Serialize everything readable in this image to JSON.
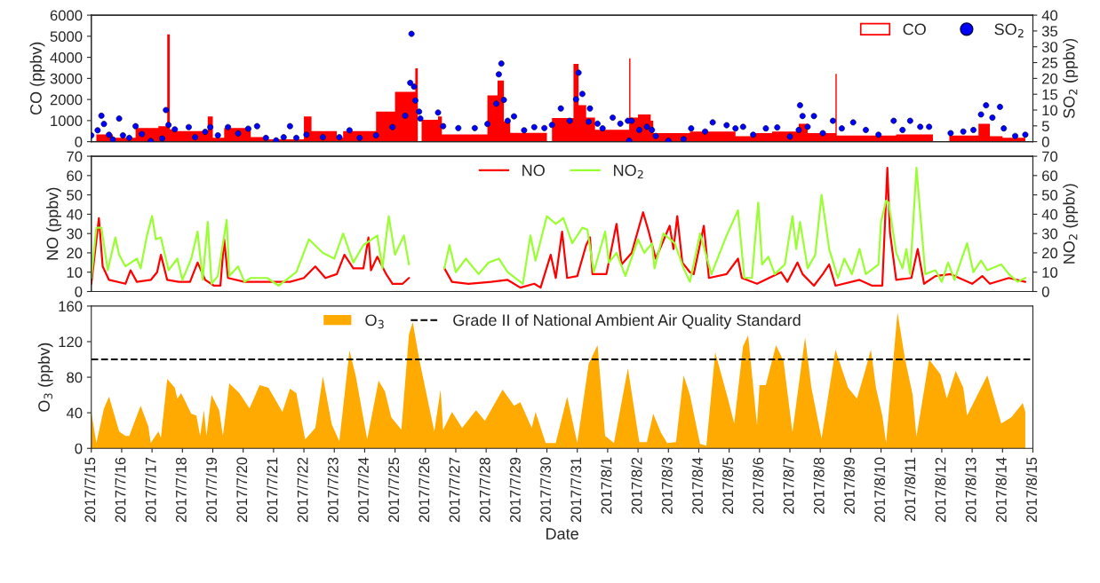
{
  "chart_data": [
    {
      "type": "bar",
      "ylabel": "CO (ppbv)",
      "y2label": "SO$_{2}$ (ppbv)",
      "xlim": [
        "2017-07-15",
        "2017-08-15"
      ],
      "ylim": [
        0,
        6000
      ],
      "yticks": [
        0,
        1000,
        2000,
        3000,
        4000,
        5000,
        6000
      ],
      "y2lim": [
        0,
        40
      ],
      "y2ticks": [
        0,
        5,
        10,
        15,
        20,
        25,
        30,
        35,
        40
      ],
      "tick_labels": "y",
      "legend": "top right",
      "series": [
        {
          "name": "CO",
          "type": "area",
          "color": "#ff0000",
          "x": [
            "2017-07-15T04:00",
            "2017-07-15T17:00",
            "2017-07-15T17:00",
            "2017-07-16T11:00",
            "2017-07-16T11:00",
            "2017-07-17T05:00",
            "2017-07-17T05:00",
            "2017-07-17T12:00",
            "2017-07-17T12:00",
            "2017-07-17T14:00",
            "2017-07-17T14:00",
            "2017-07-17T17:00",
            "2017-07-17T17:00",
            "2017-07-18T20:00",
            "2017-07-18T20:00",
            "2017-07-19T00:00",
            "2017-07-19T00:00",
            "2017-07-19T09:00",
            "2017-07-19T09:00",
            "2017-07-20T06:00",
            "2017-07-20T06:00",
            "2017-07-20T18:00",
            "2017-07-20T18:00",
            "2017-07-22T00:00",
            "2017-07-22T00:00",
            "2017-07-22T06:00",
            "2017-07-22T06:00",
            "2017-07-23T02:00",
            "2017-07-23T02:00",
            "2017-07-23T07:00",
            "2017-07-23T07:00",
            "2017-07-24T09:00",
            "2017-07-24T09:00",
            "2017-07-25T00:00",
            "2017-07-25T00:00",
            "2017-07-25T16:00",
            "2017-07-25T16:00",
            "2017-07-25T18:00",
            "2017-07-25T19:00",
            "2017-07-25T21:00",
            "2017-07-26T10:00",
            "2017-07-26T10:00",
            "2017-07-26T13:00",
            "2017-07-26T13:00",
            "2017-07-28T01:00",
            "2017-07-28T01:00",
            "2017-07-28T09:00",
            "2017-07-28T09:00",
            "2017-07-28T14:00",
            "2017-07-28T14:00",
            "2017-07-28T19:00",
            "2017-07-28T19:00",
            "2017-07-30T00:00",
            "2017-07-30T02:00",
            "2017-07-30T04:00",
            "2017-07-30T21:00",
            "2017-07-30T21:00",
            "2017-07-31T01:00",
            "2017-07-31T01:00",
            "2017-07-31T07:00",
            "2017-07-31T07:00",
            "2017-07-31T14:00",
            "2017-07-31T14:00",
            "2017-08-01T17:00",
            "2017-08-01T17:00",
            "2017-08-01T18:00",
            "2017-08-01T18:00",
            "2017-08-02T00:00",
            "2017-08-02T00:00",
            "2017-08-02T10:00",
            "2017-08-02T10:00",
            "2017-08-02T12:00",
            "2017-08-02T12:00",
            "2017-08-03T17:00",
            "2017-08-03T17:00",
            "2017-08-05T05:00",
            "2017-08-05T05:00",
            "2017-08-05T17:00",
            "2017-08-05T17:00",
            "2017-08-06T10:00",
            "2017-08-06T10:00",
            "2017-08-07T07:00",
            "2017-08-07T07:00",
            "2017-08-07T14:00",
            "2017-08-07T14:00",
            "2017-08-08T12:00",
            "2017-08-08T12:00",
            "2017-08-08T13:00",
            "2017-08-08T13:00",
            "2017-08-10T12:00",
            "2017-08-10T12:00",
            "2017-08-11T17:00",
            "2017-08-12T00:00",
            "2017-08-12T06:00",
            "2017-08-13T05:00",
            "2017-08-13T05:00",
            "2017-08-13T14:00",
            "2017-08-13T14:00",
            "2017-08-14T00:00",
            "2017-08-14T00:00",
            "2017-08-14T18:00"
          ],
          "values": [
            340,
            340,
            190,
            190,
            650,
            650,
            730,
            730,
            5090,
            5090,
            580,
            580,
            500,
            500,
            1200,
            1200,
            190,
            190,
            650,
            650,
            220,
            220,
            110,
            110,
            1200,
            1200,
            500,
            500,
            190,
            190,
            500,
            500,
            1430,
            1430,
            2360,
            2360,
            3480,
            3480,
            null,
            1040,
            1040,
            1200,
            1200,
            340,
            340,
            2200,
            2200,
            2900,
            2900,
            960,
            960,
            420,
            420,
            null,
            1120,
            1120,
            3690,
            3690,
            1730,
            1730,
            1140,
            1140,
            560,
            560,
            3950,
            3950,
            1140,
            1140,
            1290,
            1290,
            1000,
            1000,
            410,
            410,
            480,
            480,
            260,
            260,
            410,
            410,
            480,
            480,
            850,
            850,
            410,
            410,
            3220,
            3220,
            290,
            290,
            340,
            340,
            null,
            290,
            290,
            850,
            850,
            260,
            260,
            190,
            190
          ]
        },
        {
          "name": "SO$_{2}$",
          "type": "scatter",
          "axis": "y2",
          "color": "#0000ff",
          "marker": "circle",
          "x": [
            "2017-07-15T00:00",
            "2017-07-15T05:00",
            "2017-07-15T08:00",
            "2017-07-15T10:00",
            "2017-07-15T14:00",
            "2017-07-15T17:00",
            "2017-07-15T22:00",
            "2017-07-16T01:00",
            "2017-07-16T06:00",
            "2017-07-16T11:00",
            "2017-07-16T16:00",
            "2017-07-16T23:00",
            "2017-07-17T08:00",
            "2017-07-17T11:00",
            "2017-07-17T13:00",
            "2017-07-17T18:00",
            "2017-07-18T05:00",
            "2017-07-18T10:00",
            "2017-07-18T18:00",
            "2017-07-18T22:00",
            "2017-07-19T04:00",
            "2017-07-19T12:00",
            "2017-07-19T20:00",
            "2017-07-20T04:00",
            "2017-07-20T11:00",
            "2017-07-20T18:00",
            "2017-07-21T02:00",
            "2017-07-21T08:00",
            "2017-07-21T13:00",
            "2017-07-21T18:00",
            "2017-07-22T02:00",
            "2017-07-22T15:00",
            "2017-07-23T04:00",
            "2017-07-23T12:00",
            "2017-07-23T20:00",
            "2017-07-24T09:00",
            "2017-07-24T22:00",
            "2017-07-25T08:00",
            "2017-07-25T12:00",
            "2017-07-25T13:00",
            "2017-07-25T15:00",
            "2017-07-25T16:00",
            "2017-07-25T19:00",
            "2017-07-25T20:00",
            "2017-07-26T10:00",
            "2017-07-26T14:00",
            "2017-07-27T02:00",
            "2017-07-27T15:00",
            "2017-07-28T01:00",
            "2017-07-28T08:00",
            "2017-07-28T10:00",
            "2017-07-28T12:00",
            "2017-07-28T14:00",
            "2017-07-28T17:00",
            "2017-07-28T22:00",
            "2017-07-29T06:00",
            "2017-07-29T14:00",
            "2017-07-29T22:00",
            "2017-07-30T04:00",
            "2017-07-30T11:00",
            "2017-07-30T18:00",
            "2017-07-30T23:00",
            "2017-07-31T01:00",
            "2017-07-31T04:00",
            "2017-07-31T09:00",
            "2017-07-31T10:00",
            "2017-07-31T16:00",
            "2017-07-31T20:00",
            "2017-08-01T04:00",
            "2017-08-01T10:00",
            "2017-08-01T16:00",
            "2017-08-01T17:00",
            "2017-08-01T19:00",
            "2017-08-02T01:00",
            "2017-08-02T07:00",
            "2017-08-02T11:00",
            "2017-08-02T14:00",
            "2017-08-03T00:00",
            "2017-08-03T12:00",
            "2017-08-03T18:00",
            "2017-08-04T05:00",
            "2017-08-04T11:00",
            "2017-08-04T22:00",
            "2017-08-05T05:00",
            "2017-08-05T11:00",
            "2017-08-05T19:00",
            "2017-08-06T05:00",
            "2017-08-06T14:00",
            "2017-08-07T00:00",
            "2017-08-07T07:00",
            "2017-08-07T08:00",
            "2017-08-07T10:00",
            "2017-08-07T14:00",
            "2017-08-07T19:00",
            "2017-08-08T02:00",
            "2017-08-08T10:00",
            "2017-08-08T17:00",
            "2017-08-09T02:00",
            "2017-08-09T12:00",
            "2017-08-09T22:00",
            "2017-08-10T10:00",
            "2017-08-10T17:00",
            "2017-08-10T23:00",
            "2017-08-11T07:00",
            "2017-08-11T14:00",
            "2017-08-12T07:00",
            "2017-08-12T17:00",
            "2017-08-13T01:00",
            "2017-08-13T07:00",
            "2017-08-13T11:00",
            "2017-08-13T16:00",
            "2017-08-13T22:00",
            "2017-08-14T01:00",
            "2017-08-14T10:00",
            "2017-08-14T18:00"
          ],
          "values": [
            2.0,
            3.6,
            8.2,
            5.6,
            2.2,
            0.7,
            7.3,
            2.0,
            1.2,
            4.9,
            2.4,
            0.2,
            1.0,
            10.0,
            5.3,
            3.9,
            4.6,
            1.4,
            3.1,
            4.6,
            2.0,
            4.6,
            2.6,
            4.1,
            4.9,
            1.2,
            0.4,
            1.4,
            4.9,
            1.2,
            2.2,
            1.4,
            1.4,
            3.6,
            1.2,
            2.0,
            4.6,
            8.2,
            18.6,
            34.1,
            17.4,
            13.0,
            9.5,
            7.3,
            9.2,
            4.9,
            4.3,
            4.3,
            5.6,
            12.0,
            21.3,
            24.7,
            13.2,
            6.6,
            8.0,
            3.6,
            4.6,
            4.3,
            5.3,
            10.5,
            6.6,
            13.4,
            21.8,
            15.1,
            6.3,
            10.5,
            5.7,
            4.2,
            7.6,
            5.7,
            6.6,
            0.3,
            6.6,
            3.7,
            4.7,
            3.7,
            1.8,
            0.3,
            0.8,
            4.2,
            3.2,
            6.1,
            5.2,
            4.2,
            4.7,
            2.2,
            4.2,
            4.5,
            1.6,
            3.7,
            11.5,
            8.1,
            4.7,
            8.1,
            2.7,
            6.6,
            4.2,
            6.1,
            3.7,
            2.2,
            6.6,
            3.7,
            6.6,
            4.7,
            4.7,
            2.7,
            3.2,
            3.7,
            8.6,
            11.5,
            7.6,
            11.0,
            4.2,
            1.8,
            2.2
          ]
        }
      ]
    },
    {
      "type": "line",
      "ylabel": "NO (ppbv)",
      "y2label": "NO$_{2}$ (ppbv)",
      "xlim": [
        "2017-07-15",
        "2017-08-15"
      ],
      "ylim": [
        0,
        70
      ],
      "yticks": [
        0,
        10,
        20,
        30,
        40,
        50,
        60,
        70
      ],
      "y2lim": [
        0,
        70
      ],
      "y2ticks": [
        0,
        10,
        20,
        30,
        40,
        50,
        60,
        70
      ],
      "tick_labels": "y",
      "legend": "top",
      "line_style": "solid",
      "series": [
        {
          "name": "NO",
          "color": "#ff0000",
          "x": [
            "2017-07-15T00:00",
            "2017-07-15T06:00",
            "2017-07-15T09:00",
            "2017-07-15T14:00",
            "2017-07-16T03:00",
            "2017-07-16T07:00",
            "2017-07-16T12:00",
            "2017-07-16T23:00",
            "2017-07-17T04:00",
            "2017-07-17T07:00",
            "2017-07-17T12:00",
            "2017-07-17T21:00",
            "2017-07-18T06:00",
            "2017-07-18T12:00",
            "2017-07-18T18:00",
            "2017-07-19T01:00",
            "2017-07-19T06:00",
            "2017-07-19T09:00",
            "2017-07-19T12:00",
            "2017-07-20T01:00",
            "2017-07-20T17:00",
            "2017-07-21T03:00",
            "2017-07-21T13:00",
            "2017-07-22T00:00",
            "2017-07-22T09:00",
            "2017-07-22T17:00",
            "2017-07-23T02:00",
            "2017-07-23T08:00",
            "2017-07-23T15:00",
            "2017-07-23T23:00",
            "2017-07-24T03:00",
            "2017-07-24T05:00",
            "2017-07-24T10:00",
            "2017-07-24T17:00",
            "2017-07-24T22:00",
            "2017-07-25T06:00",
            "2017-07-25T11:00",
            "2017-07-26T00:00",
            "2017-07-26T15:00",
            "2017-07-26T21:00",
            "2017-07-27T10:00",
            "2017-07-28T04:00",
            "2017-07-28T17:00",
            "2017-07-29T03:00",
            "2017-07-29T14:00",
            "2017-07-29T19:00",
            "2017-07-30T03:00",
            "2017-07-30T07:00",
            "2017-07-30T12:00",
            "2017-07-30T16:00",
            "2017-07-31T00:00",
            "2017-07-31T07:00",
            "2017-07-31T10:00",
            "2017-07-31T12:00",
            "2017-07-31T23:00",
            "2017-08-01T07:00",
            "2017-08-01T11:00",
            "2017-08-01T19:00",
            "2017-08-02T04:00",
            "2017-08-02T08:00",
            "2017-08-02T14:00",
            "2017-08-03T01:00",
            "2017-08-03T04:00",
            "2017-08-03T07:00",
            "2017-08-03T11:00",
            "2017-08-03T17:00",
            "2017-08-03T20:00",
            "2017-08-04T04:00",
            "2017-08-04T08:00",
            "2017-08-04T22:00",
            "2017-08-05T07:00",
            "2017-08-05T10:00",
            "2017-08-05T22:00",
            "2017-08-06T17:00",
            "2017-08-06T22:00",
            "2017-08-07T06:00",
            "2017-08-07T10:00",
            "2017-08-07T19:00",
            "2017-08-08T02:00",
            "2017-08-08T07:00",
            "2017-08-08T12:00",
            "2017-08-09T07:00",
            "2017-08-09T17:00",
            "2017-08-10T01:00",
            "2017-08-10T05:00",
            "2017-08-10T07:00",
            "2017-08-10T12:00",
            "2017-08-11T00:00",
            "2017-08-11T05:00",
            "2017-08-11T10:00",
            "2017-08-11T19:00",
            "2017-08-12T07:00",
            "2017-08-13T00:00",
            "2017-08-13T08:00",
            "2017-08-13T14:00",
            "2017-08-14T05:00",
            "2017-08-14T18:00"
          ],
          "values": [
            4,
            38,
            13,
            6,
            4,
            11,
            5,
            6,
            10,
            19,
            6,
            5,
            5,
            15,
            6,
            3,
            3,
            27,
            7,
            5,
            5,
            5,
            5,
            7,
            13,
            7,
            9,
            19,
            12,
            12,
            28,
            11,
            18,
            9,
            4,
            4,
            7,
            null,
            12,
            5,
            4,
            5,
            6,
            2,
            4,
            2,
            19,
            7,
            31,
            7,
            8,
            24,
            28,
            9,
            9,
            35,
            14,
            20,
            41,
            32,
            17,
            34,
            22,
            39,
            15,
            10,
            9,
            34,
            7,
            9,
            17,
            7,
            4,
            10,
            5,
            15,
            9,
            3,
            9,
            14,
            3,
            6,
            3,
            3,
            64,
            31,
            6,
            7,
            22,
            4,
            8,
            9,
            4,
            8,
            4,
            7,
            5
          ]
        },
        {
          "name": "NO$_{2}$",
          "color": "#99ff33",
          "axis": "y2",
          "x": [
            "2017-07-15T00:00",
            "2017-07-15T04:00",
            "2017-07-15T08:00",
            "2017-07-15T13:00",
            "2017-07-15T19:00",
            "2017-07-15T22:00",
            "2017-07-16T03:00",
            "2017-07-16T12:00",
            "2017-07-16T15:00",
            "2017-07-16T20:00",
            "2017-07-17T00:00",
            "2017-07-17T03:00",
            "2017-07-17T07:00",
            "2017-07-17T13:00",
            "2017-07-17T20:00",
            "2017-07-18T00:00",
            "2017-07-18T07:00",
            "2017-07-18T12:00",
            "2017-07-18T16:00",
            "2017-07-18T20:00",
            "2017-07-18T23:00",
            "2017-07-19T04:00",
            "2017-07-19T11:00",
            "2017-07-19T13:00",
            "2017-07-19T20:00",
            "2017-07-20T01:00",
            "2017-07-20T06:00",
            "2017-07-20T19:00",
            "2017-07-21T04:00",
            "2017-07-21T18:00",
            "2017-07-22T04:00",
            "2017-07-22T15:00",
            "2017-07-23T00:00",
            "2017-07-23T07:00",
            "2017-07-23T15:00",
            "2017-07-23T23:00",
            "2017-07-24T10:00",
            "2017-07-24T14:00",
            "2017-07-24T19:00",
            "2017-07-25T00:00",
            "2017-07-25T07:00",
            "2017-07-25T11:00",
            "2017-07-26T00:00",
            "2017-07-26T15:00",
            "2017-07-26T19:00",
            "2017-07-27T00:00",
            "2017-07-27T08:00",
            "2017-07-27T18:00",
            "2017-07-28T02:00",
            "2017-07-28T10:00",
            "2017-07-28T17:00",
            "2017-07-29T05:00",
            "2017-07-29T11:00",
            "2017-07-29T15:00",
            "2017-07-30T00:00",
            "2017-07-30T07:00",
            "2017-07-30T13:00",
            "2017-07-30T20:00",
            "2017-07-31T04:00",
            "2017-07-31T08:00",
            "2017-07-31T13:00",
            "2017-07-31T22:00",
            "2017-08-01T01:00",
            "2017-08-01T07:00",
            "2017-08-01T14:00",
            "2017-08-02T00:00",
            "2017-08-02T05:00",
            "2017-08-02T11:00",
            "2017-08-02T13:00",
            "2017-08-02T20:00",
            "2017-08-03T05:00",
            "2017-08-03T12:00",
            "2017-08-03T17:00",
            "2017-08-04T01:00",
            "2017-08-04T10:00",
            "2017-08-04T22:00",
            "2017-08-05T07:00",
            "2017-08-05T12:00",
            "2017-08-05T18:00",
            "2017-08-05T23:00",
            "2017-08-06T02:00",
            "2017-08-06T07:00",
            "2017-08-06T12:00",
            "2017-08-06T20:00",
            "2017-08-07T02:00",
            "2017-08-07T05:00",
            "2017-08-07T08:00",
            "2017-08-07T14:00",
            "2017-08-07T20:00",
            "2017-08-08T01:00",
            "2017-08-08T07:00",
            "2017-08-08T14:00",
            "2017-08-08T19:00",
            "2017-08-09T01:00",
            "2017-08-09T07:00",
            "2017-08-09T12:00",
            "2017-08-09T22:00",
            "2017-08-10T00:00",
            "2017-08-10T04:00",
            "2017-08-10T06:00",
            "2017-08-10T12:00",
            "2017-08-10T17:00",
            "2017-08-10T20:00",
            "2017-08-10T23:00",
            "2017-08-11T04:00",
            "2017-08-11T11:00",
            "2017-08-11T19:00",
            "2017-08-12T00:00",
            "2017-08-12T05:00",
            "2017-08-12T10:00",
            "2017-08-12T20:00",
            "2017-08-13T01:00",
            "2017-08-13T07:00",
            "2017-08-13T12:00",
            "2017-08-13T23:00",
            "2017-08-14T05:00",
            "2017-08-14T12:00",
            "2017-08-14T18:00"
          ],
          "values": [
            7,
            33,
            33,
            11,
            28,
            19,
            13,
            17,
            12,
            29,
            39,
            27,
            28,
            11,
            17,
            6,
            17,
            31,
            6,
            36,
            4,
            8,
            37,
            8,
            13,
            5,
            7,
            7,
            3,
            10,
            27,
            20,
            17,
            30,
            15,
            24,
            29,
            12,
            39,
            19,
            29,
            14,
            null,
            12,
            24,
            10,
            17,
            9,
            15,
            17,
            10,
            4,
            29,
            16,
            39,
            35,
            38,
            25,
            33,
            32,
            10,
            31,
            15,
            20,
            8,
            27,
            20,
            25,
            12,
            30,
            25,
            12,
            5,
            30,
            9,
            29,
            42,
            7,
            7,
            46,
            14,
            18,
            9,
            14,
            39,
            22,
            36,
            12,
            19,
            50,
            22,
            7,
            17,
            9,
            22,
            9,
            14,
            36,
            47,
            46,
            20,
            12,
            22,
            9,
            64,
            9,
            11,
            5,
            15,
            6,
            25,
            10,
            16,
            11,
            14,
            9,
            5,
            7
          ]
        }
      ]
    },
    {
      "type": "area",
      "ylabel": "O$_{3}$ (ppbv)",
      "xlabel": "Date",
      "xlim": [
        "2017-07-15",
        "2017-08-15"
      ],
      "ylim": [
        0,
        160
      ],
      "yticks": [
        0,
        40,
        80,
        120,
        160
      ],
      "legend": "top",
      "xticks": [
        {
          "value": "2017-07-15",
          "label": "2017/7/15"
        },
        {
          "value": "2017-07-16",
          "label": "2017/7/16"
        },
        {
          "value": "2017-07-17",
          "label": "2017/7/17"
        },
        {
          "value": "2017-07-18",
          "label": "2017/7/18"
        },
        {
          "value": "2017-07-19",
          "label": "2017/7/19"
        },
        {
          "value": "2017-07-20",
          "label": "2017/7/20"
        },
        {
          "value": "2017-07-21",
          "label": "2017/7/21"
        },
        {
          "value": "2017-07-22",
          "label": "2017/7/22"
        },
        {
          "value": "2017-07-23",
          "label": "2017/7/23"
        },
        {
          "value": "2017-07-24",
          "label": "2017/7/24"
        },
        {
          "value": "2017-07-25",
          "label": "2017/7/25"
        },
        {
          "value": "2017-07-26",
          "label": "2017/7/26"
        },
        {
          "value": "2017-07-27",
          "label": "2017/7/27"
        },
        {
          "value": "2017-07-28",
          "label": "2017/7/28"
        },
        {
          "value": "2017-07-29",
          "label": "2017/7/29"
        },
        {
          "value": "2017-07-30",
          "label": "2017/7/30"
        },
        {
          "value": "2017-07-31",
          "label": "2017/7/31"
        },
        {
          "value": "2017-08-01",
          "label": "2017/8/1"
        },
        {
          "value": "2017-08-02",
          "label": "2017/8/2"
        },
        {
          "value": "2017-08-03",
          "label": "2017/8/3"
        },
        {
          "value": "2017-08-04",
          "label": "2017/8/4"
        },
        {
          "value": "2017-08-05",
          "label": "2017/8/5"
        },
        {
          "value": "2017-08-06",
          "label": "2017/8/6"
        },
        {
          "value": "2017-08-07",
          "label": "2017/8/7"
        },
        {
          "value": "2017-08-08",
          "label": "2017/8/8"
        },
        {
          "value": "2017-08-09",
          "label": "2017/8/9"
        },
        {
          "value": "2017-08-10",
          "label": "2017/8/10"
        },
        {
          "value": "2017-08-11",
          "label": "2017/8/11"
        },
        {
          "value": "2017-08-12",
          "label": "2017/8/12"
        },
        {
          "value": "2017-08-13",
          "label": "2017/8/13"
        },
        {
          "value": "2017-08-14",
          "label": "2017/8/14"
        },
        {
          "value": "2017-08-15",
          "label": "2017/8/15"
        }
      ],
      "ref_lines": [
        {
          "axis": "y",
          "value": 100,
          "label": "Grade II of National Ambient Air Quality Standard",
          "color": "#000000",
          "line_style": "dashed"
        }
      ],
      "series": [
        {
          "name": "O$_{3}$",
          "color": "#ffaa00",
          "x": [
            "2017-07-15T00:00",
            "2017-07-15T04:00",
            "2017-07-15T10:00",
            "2017-07-15T14:00",
            "2017-07-15T22:00",
            "2017-07-16T03:00",
            "2017-07-16T06:00",
            "2017-07-16T15:00",
            "2017-07-16T21:00",
            "2017-07-16T23:00",
            "2017-07-17T05:00",
            "2017-07-17T07:00",
            "2017-07-17T12:00",
            "2017-07-17T18:00",
            "2017-07-17T20:00",
            "2017-07-17T23:00",
            "2017-07-18T07:00",
            "2017-07-18T11:00",
            "2017-07-18T14:00",
            "2017-07-18T17:00",
            "2017-07-18T19:00",
            "2017-07-18T23:00",
            "2017-07-19T05:00",
            "2017-07-19T08:00",
            "2017-07-19T13:00",
            "2017-07-19T21:00",
            "2017-07-20T05:00",
            "2017-07-20T13:00",
            "2017-07-20T20:00",
            "2017-07-21T07:00",
            "2017-07-21T13:00",
            "2017-07-21T18:00",
            "2017-07-22T01:00",
            "2017-07-22T09:00",
            "2017-07-22T15:00",
            "2017-07-22T22:00",
            "2017-07-23T04:00",
            "2017-07-23T12:00",
            "2017-07-23T17:00",
            "2017-07-24T02:00",
            "2017-07-24T11:00",
            "2017-07-24T16:00",
            "2017-07-24T21:00",
            "2017-07-25T05:00",
            "2017-07-25T11:00",
            "2017-07-25T14:00",
            "2017-07-25T19:00",
            "2017-07-26T07:00",
            "2017-07-26T12:00",
            "2017-07-26T14:00",
            "2017-07-26T21:00",
            "2017-07-27T05:00",
            "2017-07-27T16:00",
            "2017-07-27T23:00",
            "2017-07-28T13:00",
            "2017-07-28T22:00",
            "2017-07-29T03:00",
            "2017-07-29T12:00",
            "2017-07-29T15:00",
            "2017-07-29T23:00",
            "2017-07-30T07:00",
            "2017-07-30T16:00",
            "2017-07-31T00:00",
            "2017-07-31T09:00",
            "2017-07-31T16:00",
            "2017-07-31T22:00",
            "2017-08-01T05:00",
            "2017-08-01T16:00",
            "2017-08-02T01:00",
            "2017-08-02T07:00",
            "2017-08-02T12:00",
            "2017-08-02T18:00",
            "2017-08-02T23:00",
            "2017-08-03T06:00",
            "2017-08-03T12:00",
            "2017-08-03T17:00",
            "2017-08-04T01:00",
            "2017-08-04T06:00",
            "2017-08-04T13:00",
            "2017-08-04T23:00",
            "2017-08-05T04:00",
            "2017-08-05T11:00",
            "2017-08-05T15:00",
            "2017-08-05T22:00",
            "2017-08-06T00:00",
            "2017-08-06T05:00",
            "2017-08-06T13:00",
            "2017-08-06T19:00",
            "2017-08-07T02:00",
            "2017-08-07T12:00",
            "2017-08-07T17:00",
            "2017-08-08T01:00",
            "2017-08-08T12:00",
            "2017-08-08T22:00",
            "2017-08-09T05:00",
            "2017-08-09T11:00",
            "2017-08-09T16:00",
            "2017-08-09T20:00",
            "2017-08-10T01:00",
            "2017-08-10T04:00",
            "2017-08-10T13:00",
            "2017-08-10T19:00",
            "2017-08-11T01:00",
            "2017-08-11T04:00",
            "2017-08-11T14:00",
            "2017-08-11T23:00",
            "2017-08-12T04:00",
            "2017-08-12T11:00",
            "2017-08-12T17:00",
            "2017-08-12T20:00",
            "2017-08-13T02:00",
            "2017-08-13T12:00",
            "2017-08-13T23:00",
            "2017-08-14T07:00",
            "2017-08-14T16:00",
            "2017-08-14T18:00"
          ],
          "values": [
            41,
            6,
            45,
            58,
            19,
            14,
            14,
            48,
            25,
            6,
            19,
            12,
            78,
            68,
            56,
            62,
            39,
            37,
            14,
            43,
            14,
            60,
            43,
            14,
            73,
            62,
            45,
            71,
            68,
            41,
            67,
            62,
            10,
            23,
            81,
            27,
            8,
            110,
            81,
            10,
            76,
            64,
            35,
            21,
            128,
            142,
            101,
            19,
            66,
            21,
            41,
            23,
            43,
            31,
            66,
            48,
            52,
            23,
            41,
            6,
            6,
            58,
            6,
            95,
            116,
            14,
            6,
            90,
            7,
            7,
            39,
            18,
            6,
            7,
            82,
            60,
            5,
            3,
            108,
            56,
            28,
            115,
            127,
            26,
            71,
            71,
            116,
            98,
            18,
            125,
            68,
            11,
            111,
            68,
            56,
            85,
            111,
            68,
            37,
            6,
            153,
            100,
            60,
            13,
            100,
            83,
            56,
            87,
            68,
            37,
            54,
            82,
            28,
            35,
            51,
            41
          ]
        }
      ]
    }
  ]
}
